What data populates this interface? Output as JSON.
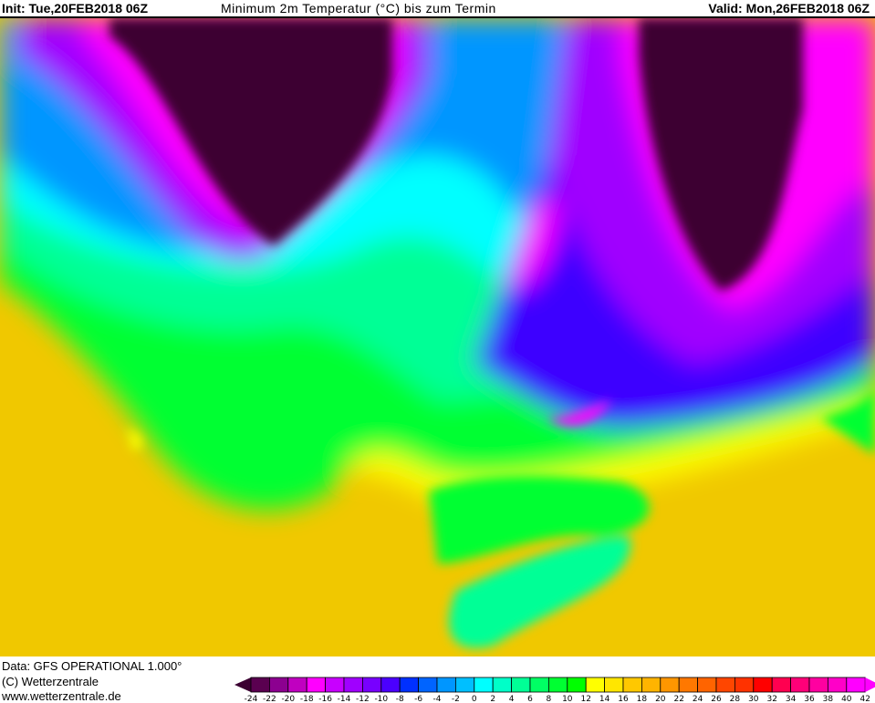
{
  "header": {
    "init": "Init: Tue,20FEB2018 06Z",
    "title": "Minimum 2m Temperatur (°C) bis zum Termin",
    "valid": "Valid: Mon,26FEB2018 06Z"
  },
  "footer": {
    "data": "Data: GFS OPERATIONAL 1.000°",
    "copyright": "(C) Wetterzentrale",
    "url": "www.wetterzentrale.de"
  },
  "legend": {
    "unit": "°C",
    "ticks": [
      "-24",
      "-22",
      "-20",
      "-18",
      "-16",
      "-14",
      "-12",
      "-10",
      "-8",
      "-6",
      "-4",
      "-2",
      "0",
      "2",
      "4",
      "6",
      "8",
      "10",
      "12",
      "14",
      "16",
      "18",
      "20",
      "22",
      "24",
      "26",
      "28",
      "30",
      "32",
      "34",
      "36",
      "38",
      "40",
      "42"
    ],
    "colors": [
      "#5a0050",
      "#8c0090",
      "#c000c0",
      "#ff00ff",
      "#c800ff",
      "#a000ff",
      "#7800ff",
      "#4b00ff",
      "#0030ff",
      "#0064ff",
      "#0096ff",
      "#00bfff",
      "#00ffff",
      "#00ffc8",
      "#00ff96",
      "#00ff64",
      "#00ff32",
      "#00ff00",
      "#ffff00",
      "#ffe600",
      "#ffc800",
      "#ffb400",
      "#ff9600",
      "#ff7800",
      "#ff6400",
      "#ff4600",
      "#ff3200",
      "#ff0000",
      "#ff0050",
      "#ff0078",
      "#ff00a0",
      "#ff00c8",
      "#ff00ff"
    ],
    "below_color": "#3c0032",
    "above_color": "#ff00ff"
  }
}
